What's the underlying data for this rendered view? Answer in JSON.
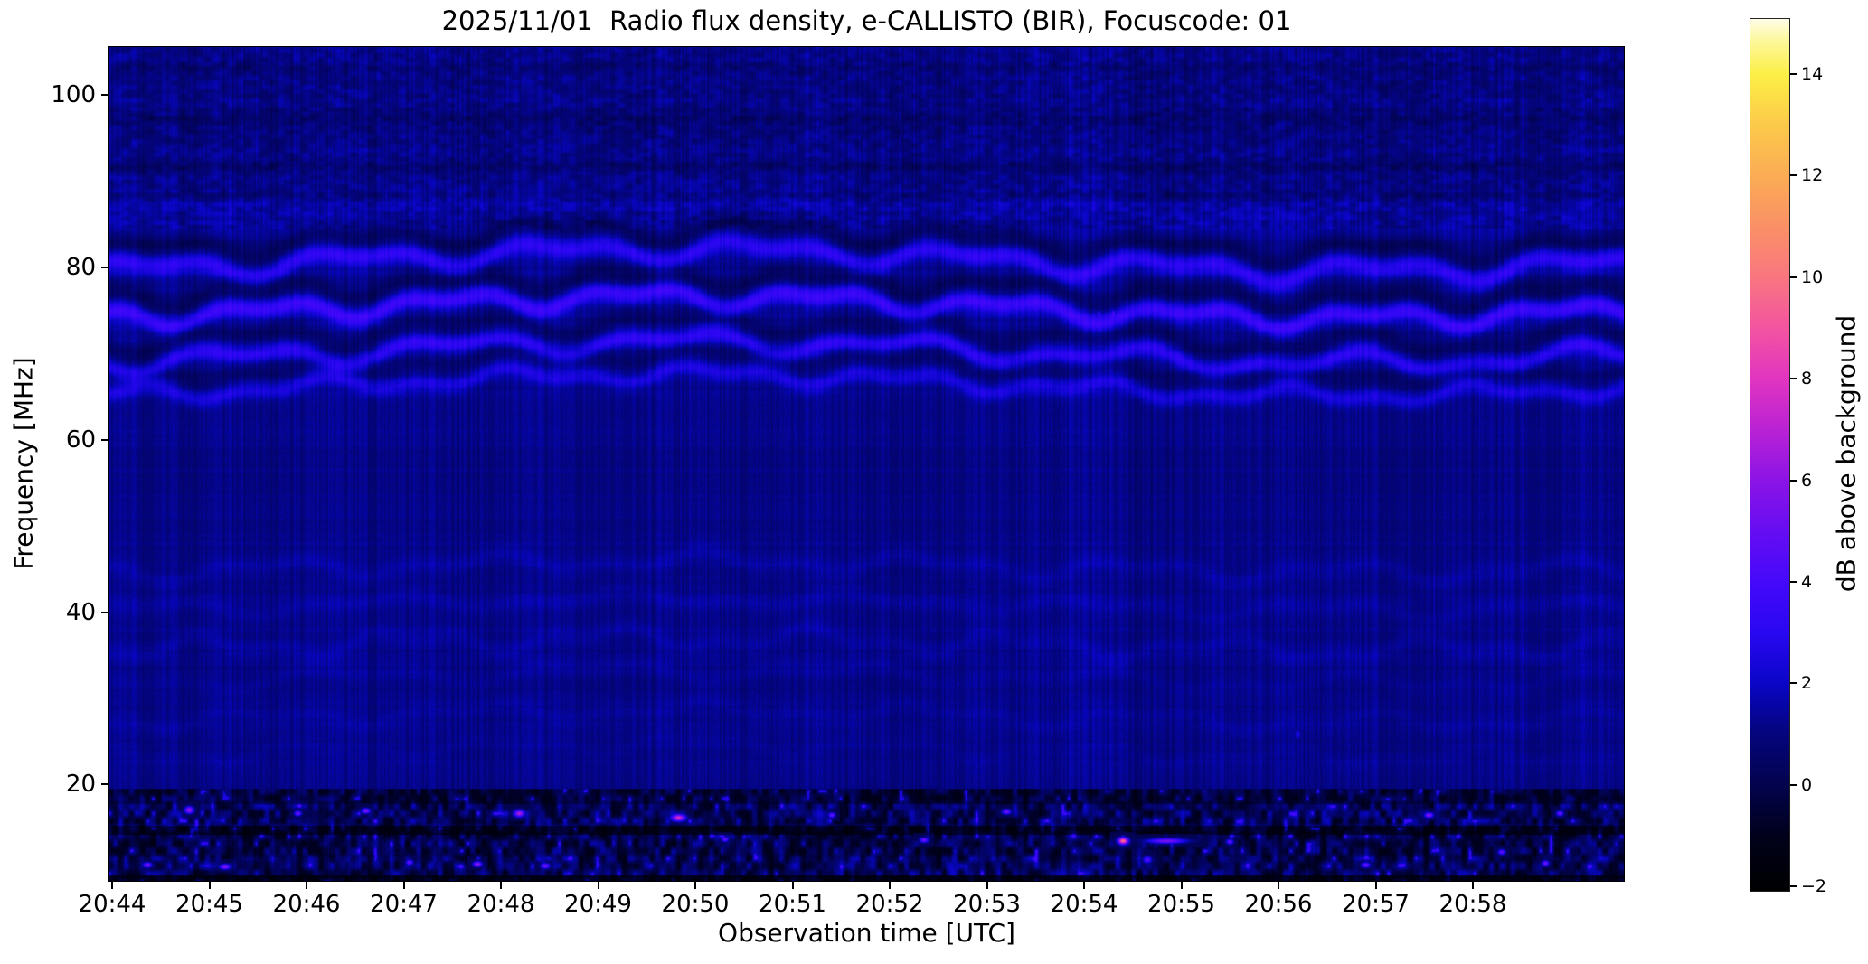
{
  "chart_data": {
    "type": "heatmap",
    "subtype": "radio-spectrogram",
    "title": "2025/11/01  Radio flux density, e-CALLISTO (BIR), Focuscode: 01",
    "date": "2025/11/01",
    "instrument": "e-CALLISTO (BIR)",
    "focuscode": "01",
    "xlabel": "Observation time [UTC]",
    "ylabel": "Frequency [MHz]",
    "colorbar_label": "dB above background",
    "x_axis": {
      "tick_labels": [
        "20:44",
        "20:45",
        "20:46",
        "20:47",
        "20:48",
        "20:49",
        "20:50",
        "20:51",
        "20:52",
        "20:53",
        "20:54",
        "20:55",
        "20:56",
        "20:57",
        "20:58"
      ],
      "start": "20:44",
      "end": "20:59",
      "duration_min": 15.6
    },
    "y_axis": {
      "tick_values": [
        20,
        40,
        60,
        80,
        100
      ],
      "range": [
        8.7,
        105.7
      ],
      "unit": "MHz"
    },
    "colorbar": {
      "tick_labels": [
        "−2",
        "0",
        "2",
        "4",
        "6",
        "8",
        "10",
        "12",
        "14"
      ],
      "tick_values": [
        -2,
        0,
        2,
        4,
        6,
        8,
        10,
        12,
        14
      ],
      "range": [
        -2.1,
        15.1
      ],
      "colormap": "gnuplot2",
      "stops": [
        {
          "value": -2.1,
          "color": "#000000"
        },
        {
          "value": -1.0,
          "color": "#01011c"
        },
        {
          "value": 0.0,
          "color": "#03034e"
        },
        {
          "value": 1.0,
          "color": "#05057d"
        },
        {
          "value": 1.5,
          "color": "#0605a0"
        },
        {
          "value": 2.0,
          "color": "#0b06c8"
        },
        {
          "value": 3.0,
          "color": "#2a07f2"
        },
        {
          "value": 4.0,
          "color": "#4509fa"
        },
        {
          "value": 5.0,
          "color": "#660df2"
        },
        {
          "value": 6.0,
          "color": "#8c14e6"
        },
        {
          "value": 7.0,
          "color": "#b922d4"
        },
        {
          "value": 8.0,
          "color": "#e135c0"
        },
        {
          "value": 9.0,
          "color": "#f354a0"
        },
        {
          "value": 10.0,
          "color": "#f97680"
        },
        {
          "value": 11.0,
          "color": "#fa9066"
        },
        {
          "value": 12.0,
          "color": "#fbac55"
        },
        {
          "value": 13.0,
          "color": "#fcc94a"
        },
        {
          "value": 14.0,
          "color": "#fcef45"
        },
        {
          "value": 14.7,
          "color": "#fdf8a0"
        },
        {
          "value": 15.1,
          "color": "#fefde8"
        }
      ]
    },
    "features": {
      "background_db": 1.12,
      "band_zone_haze": {
        "f_center": 74.0,
        "width": 8.5,
        "gain": 0.25
      },
      "slow_drift": {
        "amp": 1.25,
        "period_min": 13.6,
        "t0_min": 2.4
      },
      "wavy_bands": [
        {
          "f": 80.9,
          "amp": 1.5,
          "p1": 2.1,
          "p2": 1.05,
          "ph1": 0.5,
          "ph2": 2.1,
          "gain": 1.9,
          "width": 1.15,
          "gap_depth": 0.85
        },
        {
          "f": 75.4,
          "amp": 1.35,
          "p1": 1.9,
          "p2": 0.95,
          "ph1": 2.6,
          "ph2": 0.7,
          "gain": 2.3,
          "width": 1.05,
          "gap_depth": 0.9
        },
        {
          "f": 70.2,
          "amp": 1.4,
          "p1": 2.3,
          "p2": 1.1,
          "ph1": 4.4,
          "ph2": 3.3,
          "gain": 1.9,
          "width": 1.0,
          "gap_depth": 0.8
        },
        {
          "f": 66.4,
          "amp": 1.1,
          "p1": 2.0,
          "p2": 0.9,
          "ph1": 1.2,
          "ph2": 4.9,
          "gain": 1.3,
          "width": 0.95,
          "gap_depth": 0.6
        }
      ],
      "faint_bands": [
        {
          "f": 86.8,
          "amp": 0.4,
          "gain": 0.5,
          "width": 2.2,
          "p1": 3.1,
          "p2": 1.4,
          "ph1": 1.0,
          "ph2": 0.3
        },
        {
          "f": 45.2,
          "amp": 1.3,
          "gain": 0.42,
          "width": 1.1,
          "p1": 2.2,
          "p2": 1.0,
          "ph1": 3.0,
          "ph2": 1.2
        },
        {
          "f": 40.8,
          "amp": 1.1,
          "gain": 0.3,
          "width": 1.0,
          "p1": 2.4,
          "p2": 1.1,
          "ph1": 0.4,
          "ph2": 2.8
        },
        {
          "f": 36.3,
          "amp": 1.4,
          "gain": 0.4,
          "width": 1.1,
          "p1": 2.1,
          "p2": 0.9,
          "ph1": 5.1,
          "ph2": 1.9
        },
        {
          "f": 32.4,
          "amp": 1.1,
          "gain": 0.3,
          "width": 1.0,
          "p1": 2.6,
          "p2": 1.2,
          "ph1": 2.2,
          "ph2": 4.0
        },
        {
          "f": 27.9,
          "amp": 1.2,
          "gain": 0.24,
          "width": 1.0,
          "p1": 2.3,
          "p2": 1.0,
          "ph1": 3.9,
          "ph2": 0.8
        },
        {
          "f": 23.8,
          "amp": 1.0,
          "gain": 0.2,
          "width": 0.9,
          "p1": 2.0,
          "p2": 0.95,
          "ph1": 1.6,
          "ph2": 2.5
        }
      ],
      "top_region": {
        "f_min": 84.5,
        "mottle": 0.5,
        "dark_lanes": [
          {
            "f": 103.2,
            "depth": 0.3,
            "width": 0.7
          },
          {
            "f": 97.4,
            "depth": 0.4,
            "width": 0.8
          },
          {
            "f": 91.9,
            "depth": 0.35,
            "width": 0.7
          },
          {
            "f": 88.6,
            "depth": 0.3,
            "width": 0.6
          }
        ]
      },
      "noise_strips": [
        {
          "f_max": 19.4,
          "f_min": 17.6,
          "base": -1.1,
          "amp": 2.6,
          "gamma": 1.8
        },
        {
          "f_max": 17.6,
          "f_min": 15.1,
          "base": -1.0,
          "amp": 3.4,
          "gamma": 1.4
        },
        {
          "f_max": 15.1,
          "f_min": 14.1,
          "base": -1.5,
          "amp": 2.2,
          "gamma": 2.2
        },
        {
          "f_max": 14.1,
          "f_min": 11.4,
          "base": -1.1,
          "amp": 3.2,
          "gamma": 1.5
        },
        {
          "f_max": 11.4,
          "f_min": 9.3,
          "base": -1.0,
          "amp": 3.4,
          "gamma": 1.4
        },
        {
          "f_max": 9.3,
          "f_min": 8.6,
          "base": -1.6,
          "amp": 1.6,
          "gamma": 2.0
        }
      ],
      "hotspots": [
        {
          "t": 0.78,
          "f": 17.0,
          "db": 6.5,
          "sx": 5,
          "sy": 4
        },
        {
          "t": 1.9,
          "f": 16.6,
          "db": 5.2,
          "sx": 4,
          "sy": 3
        },
        {
          "t": 2.6,
          "f": 16.9,
          "db": 5.8,
          "sx": 5,
          "sy": 3
        },
        {
          "t": 4.18,
          "f": 16.6,
          "db": 6.8,
          "sx": 6,
          "sy": 4
        },
        {
          "t": 5.82,
          "f": 16.1,
          "db": 7.8,
          "sx": 8,
          "sy": 4
        },
        {
          "t": 7.4,
          "f": 16.4,
          "db": 5.0,
          "sx": 4,
          "sy": 3
        },
        {
          "t": 9.2,
          "f": 16.8,
          "db": 5.4,
          "sx": 5,
          "sy": 3
        },
        {
          "t": 13.55,
          "f": 16.4,
          "db": 6.0,
          "sx": 5,
          "sy": 3
        },
        {
          "t": 14.9,
          "f": 16.6,
          "db": 5.1,
          "sx": 4,
          "sy": 3
        },
        {
          "t": 0.35,
          "f": 10.6,
          "db": 5.6,
          "sx": 5,
          "sy": 3
        },
        {
          "t": 1.15,
          "f": 10.4,
          "db": 6.2,
          "sx": 6,
          "sy": 3
        },
        {
          "t": 3.05,
          "f": 10.9,
          "db": 5.2,
          "sx": 4,
          "sy": 3
        },
        {
          "t": 3.75,
          "f": 10.7,
          "db": 6.2,
          "sx": 5,
          "sy": 3
        },
        {
          "t": 4.45,
          "f": 10.5,
          "db": 5.8,
          "sx": 5,
          "sy": 3
        },
        {
          "t": 6.3,
          "f": 13.6,
          "db": 5.0,
          "sx": 4,
          "sy": 3
        },
        {
          "t": 8.35,
          "f": 13.5,
          "db": 5.3,
          "sx": 5,
          "sy": 3
        },
        {
          "t": 10.4,
          "f": 13.4,
          "db": 9.8,
          "sx": 6,
          "sy": 4
        },
        {
          "t": 10.85,
          "f": 13.4,
          "db": 5.6,
          "sx": 22,
          "sy": 3
        },
        {
          "t": 10.65,
          "f": 11.2,
          "db": 4.4,
          "sx": 5,
          "sy": 4
        },
        {
          "t": 11.5,
          "f": 13.3,
          "db": 4.8,
          "sx": 4,
          "sy": 3
        },
        {
          "t": 12.9,
          "f": 10.6,
          "db": 5.2,
          "sx": 5,
          "sy": 3
        },
        {
          "t": 14.3,
          "f": 12.1,
          "db": 5.0,
          "sx": 4,
          "sy": 3
        },
        {
          "t": 14.75,
          "f": 10.8,
          "db": 5.5,
          "sx": 4,
          "sy": 3
        },
        {
          "t": 12.2,
          "f": 25.8,
          "db": 2.7,
          "sx": 4,
          "sy": 6
        },
        {
          "t": 10.15,
          "f": 74.7,
          "db": 4.7,
          "sx": 1.6,
          "sy": 4
        },
        {
          "t": 10.3,
          "f": 74.7,
          "db": 5.0,
          "sx": 1.6,
          "sy": 5
        }
      ]
    }
  }
}
